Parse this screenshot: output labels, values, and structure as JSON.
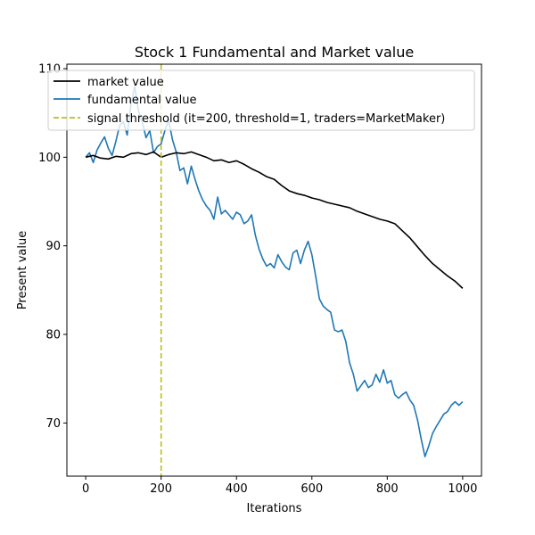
{
  "chart_data": {
    "type": "line",
    "title": "Stock 1 Fundamental and Market value",
    "xlabel": "Iterations",
    "ylabel": "Present value",
    "xlim": [
      -50,
      1050
    ],
    "ylim": [
      64,
      110.5
    ],
    "xticks": [
      0,
      200,
      400,
      600,
      800,
      1000
    ],
    "yticks": [
      70,
      80,
      90,
      100,
      110
    ],
    "grid": false,
    "legend_position": "top-left",
    "series": [
      {
        "name": "market value",
        "color": "#000000",
        "style": "solid",
        "x": [
          0,
          20,
          40,
          60,
          80,
          100,
          120,
          140,
          160,
          180,
          200,
          220,
          240,
          260,
          280,
          300,
          320,
          340,
          360,
          380,
          400,
          420,
          440,
          460,
          480,
          500,
          520,
          540,
          560,
          580,
          600,
          620,
          640,
          660,
          680,
          700,
          720,
          740,
          760,
          780,
          800,
          820,
          840,
          860,
          880,
          900,
          920,
          940,
          960,
          980,
          1000
        ],
        "y": [
          100.0,
          100.2,
          99.9,
          99.8,
          100.1,
          100.0,
          100.4,
          100.5,
          100.3,
          100.6,
          100.0,
          100.3,
          100.5,
          100.4,
          100.6,
          100.3,
          100.0,
          99.6,
          99.7,
          99.4,
          99.6,
          99.2,
          98.7,
          98.3,
          97.8,
          97.5,
          96.8,
          96.2,
          95.9,
          95.7,
          95.4,
          95.2,
          94.9,
          94.7,
          94.5,
          94.3,
          93.9,
          93.6,
          93.3,
          93.0,
          92.8,
          92.5,
          91.7,
          90.9,
          89.9,
          88.9,
          88.0,
          87.3,
          86.6,
          86.0,
          85.2
        ]
      },
      {
        "name": "fundamental value",
        "color": "#1f77b4",
        "style": "solid",
        "x": [
          0,
          10,
          20,
          30,
          40,
          50,
          60,
          70,
          80,
          90,
          100,
          110,
          120,
          130,
          140,
          150,
          160,
          170,
          180,
          190,
          200,
          210,
          220,
          230,
          240,
          250,
          260,
          270,
          280,
          290,
          300,
          310,
          320,
          330,
          340,
          350,
          360,
          370,
          380,
          390,
          400,
          410,
          420,
          430,
          440,
          450,
          460,
          470,
          480,
          490,
          500,
          510,
          520,
          530,
          540,
          550,
          560,
          570,
          580,
          590,
          600,
          610,
          620,
          630,
          640,
          650,
          660,
          670,
          680,
          690,
          700,
          710,
          720,
          730,
          740,
          750,
          760,
          770,
          780,
          790,
          800,
          810,
          820,
          830,
          840,
          850,
          860,
          870,
          880,
          890,
          900,
          910,
          920,
          930,
          940,
          950,
          960,
          970,
          980,
          990,
          1000
        ],
        "y": [
          100.0,
          100.5,
          99.4,
          100.8,
          101.6,
          102.3,
          101.0,
          100.2,
          101.8,
          103.6,
          104.0,
          102.5,
          106.0,
          108.0,
          105.2,
          104.0,
          102.2,
          103.0,
          100.5,
          101.2,
          101.5,
          103.0,
          104.2,
          102.0,
          100.6,
          98.5,
          98.8,
          97.0,
          99.0,
          97.5,
          96.2,
          95.2,
          94.5,
          94.0,
          93.0,
          95.5,
          93.6,
          94.0,
          93.5,
          93.0,
          93.8,
          93.5,
          92.5,
          92.8,
          93.5,
          91.2,
          89.6,
          88.5,
          87.7,
          88.0,
          87.5,
          89.0,
          88.2,
          87.6,
          87.3,
          89.2,
          89.5,
          88.0,
          89.5,
          90.5,
          89.0,
          86.6,
          84.0,
          83.2,
          82.8,
          82.5,
          80.5,
          80.3,
          80.5,
          79.2,
          76.8,
          75.5,
          73.6,
          74.2,
          74.8,
          74.0,
          74.3,
          75.5,
          74.6,
          76.0,
          74.5,
          74.8,
          73.2,
          72.8,
          73.2,
          73.5,
          72.6,
          72.0,
          70.4,
          68.2,
          66.2,
          67.4,
          68.8,
          69.6,
          70.3,
          71.0,
          71.3,
          72.0,
          72.4,
          72.0,
          72.4
        ]
      },
      {
        "name": "signal threshold (it=200, threshold=1, traders=MarketMaker)",
        "color": "#bcbd22",
        "style": "dashed",
        "vline_x": 200
      }
    ]
  }
}
